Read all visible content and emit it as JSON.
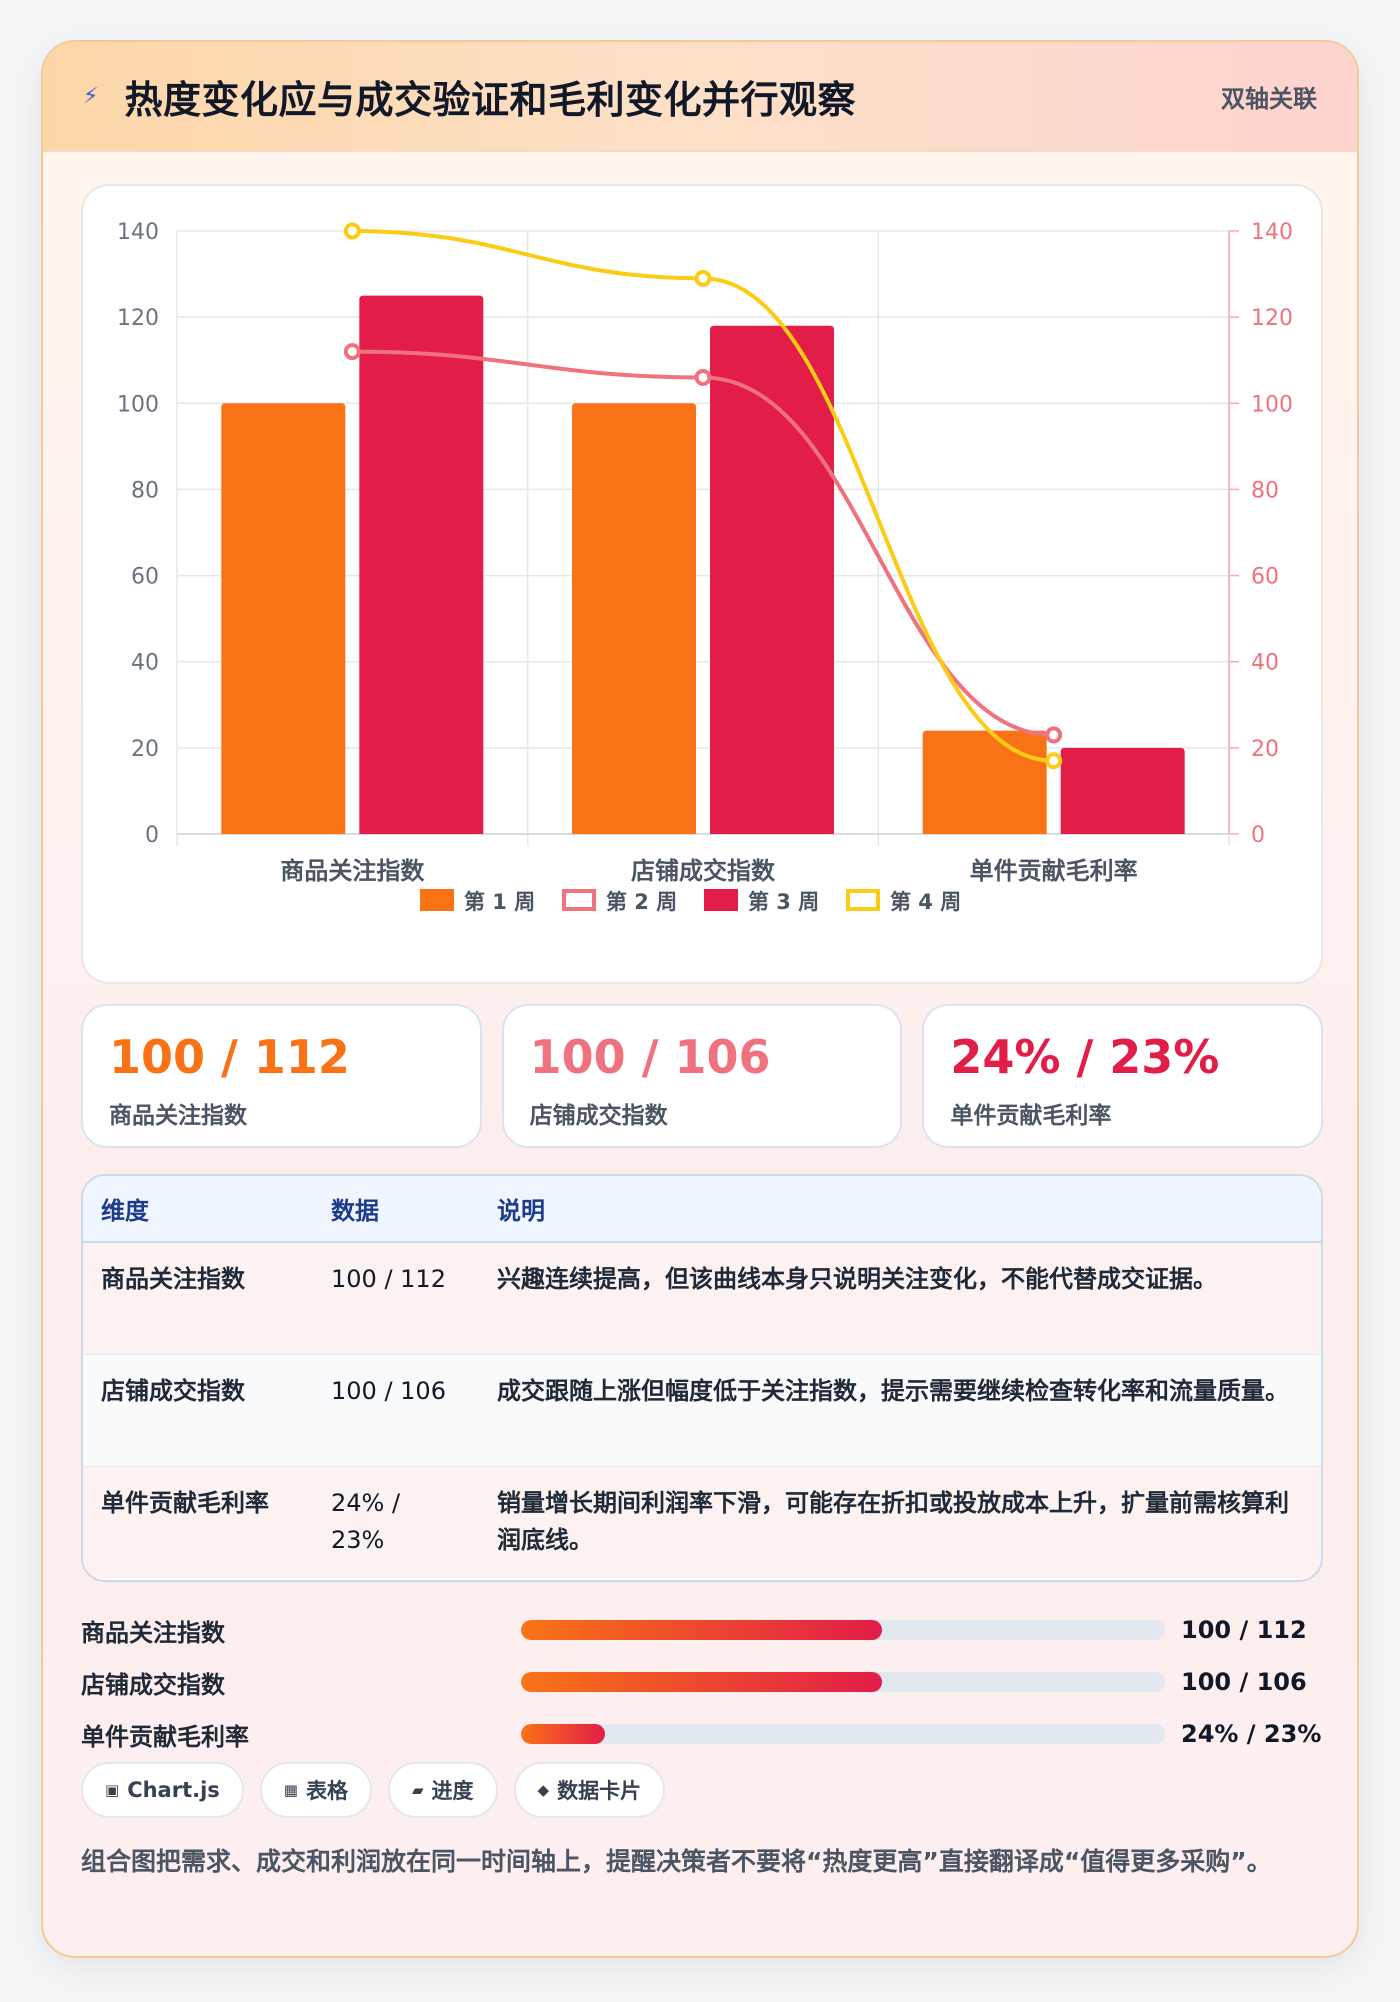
{
  "header": {
    "icon": "lightning-icon",
    "title": "热度变化应与成交验证和毛利变化并行观察",
    "tag": "双轴关联"
  },
  "chart_data": {
    "type": "bar",
    "categories": [
      "商品关注指数",
      "店铺成交指数",
      "单件贡献毛利率"
    ],
    "y_left": {
      "ylim": [
        0,
        140
      ],
      "ticks": [
        0,
        20,
        40,
        60,
        80,
        100,
        120,
        140
      ]
    },
    "y_right": {
      "ylim": [
        0,
        140
      ],
      "ticks": [
        0,
        20,
        40,
        60,
        80,
        100,
        120,
        140
      ]
    },
    "grid": true,
    "legend_position": "bottom",
    "series": [
      {
        "name": "第 1 周",
        "type": "bar",
        "axis": "left",
        "color": "#f97316",
        "values": [
          100,
          100,
          24
        ]
      },
      {
        "name": "第 2 周",
        "type": "line",
        "axis": "right",
        "color": "#f0727f",
        "values": [
          112,
          106,
          23
        ]
      },
      {
        "name": "第 3 周",
        "type": "bar",
        "axis": "left",
        "color": "#e11d48",
        "values": [
          125,
          118,
          20
        ]
      },
      {
        "name": "第 4 周",
        "type": "line",
        "axis": "right",
        "color": "#facc15",
        "values": [
          140,
          129,
          17
        ]
      }
    ]
  },
  "stats": [
    {
      "value": "100 / 112",
      "label": "商品关注指数",
      "color": "#f97316"
    },
    {
      "value": "100 / 106",
      "label": "店铺成交指数",
      "color": "#f0727f"
    },
    {
      "value": "24% / 23%",
      "label": "单件贡献毛利率",
      "color": "#e11d48"
    }
  ],
  "table": {
    "headers": [
      "维度",
      "数据",
      "说明"
    ],
    "rows": [
      [
        "商品关注指数",
        "100 / 112",
        "兴趣连续提高，但该曲线本身只说明关注变化，不能代替成交证据。"
      ],
      [
        "店铺成交指数",
        "100 / 106",
        "成交跟随上涨但幅度低于关注指数，提示需要继续检查转化率和流量质量。"
      ],
      [
        "单件贡献毛利率",
        "24% / 23%",
        "销量增长期间利润率下滑，可能存在折扣或投放成本上升，扩量前需核算利润底线。"
      ]
    ]
  },
  "progress": [
    {
      "label": "商品关注指数",
      "value": "100 / 112",
      "fill": 0.56
    },
    {
      "label": "店铺成交指数",
      "value": "100 / 106",
      "fill": 0.56
    },
    {
      "label": "单件贡献毛利率",
      "value": "24% / 23%",
      "fill": 0.13
    }
  ],
  "chips": [
    {
      "icon": "square-icon",
      "glyph": "▣",
      "label": "Chart.js"
    },
    {
      "icon": "grid-icon",
      "glyph": "▦",
      "label": "表格"
    },
    {
      "icon": "progress-icon",
      "glyph": "▰",
      "label": "进度"
    },
    {
      "icon": "diamond-icon",
      "glyph": "◆",
      "label": "数据卡片"
    }
  ],
  "note": "组合图把需求、成交和利润放在同一时间轴上，提醒决策者不要将“热度更高”直接翻译成“值得更多采购”。"
}
